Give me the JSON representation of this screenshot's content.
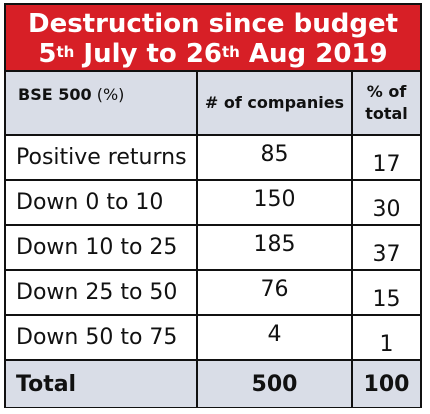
{
  "title": {
    "line1": "Destruction since budget",
    "line2_day1": "5",
    "line2_sup1": "th",
    "line2_mid": " July to 26",
    "line2_sup2": "th",
    "line2_end": " Aug 2019"
  },
  "table": {
    "headers": {
      "col1_bold": "BSE 500",
      "col1_paren": " (%)",
      "col2": "# of companies",
      "col3_line1": "% of",
      "col3_line2": "total"
    },
    "rows": [
      {
        "label": "Positive returns",
        "companies": "85",
        "pct": "17"
      },
      {
        "label": "Down 0 to 10",
        "companies": "150",
        "pct": "30"
      },
      {
        "label": "Down 10 to 25",
        "companies": "185",
        "pct": "37"
      },
      {
        "label": "Down 25 to 50",
        "companies": "76",
        "pct": "15"
      },
      {
        "label": "Down 50 to 75",
        "companies": "4",
        "pct": "1"
      }
    ],
    "total": {
      "label": "Total",
      "companies": "500",
      "pct": "100"
    }
  },
  "colors": {
    "title_bg": "#d71f26",
    "header_bg": "#d9dde7",
    "border": "#111111"
  }
}
